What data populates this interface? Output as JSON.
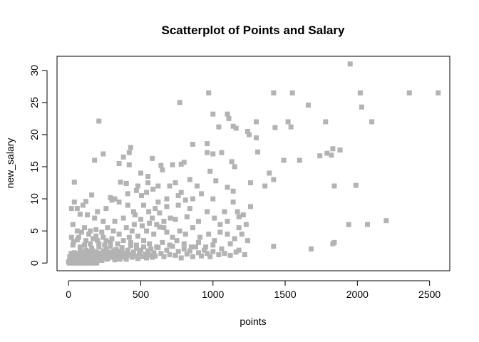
{
  "chart_data": {
    "type": "scatter",
    "title": "Scatterplot of Points and Salary",
    "xlabel": "points",
    "ylabel": "new_salary",
    "xlim": [
      -80,
      2640
    ],
    "ylim": [
      -1.2,
      32.2
    ],
    "x_ticks": [
      0,
      500,
      1000,
      1500,
      2000,
      2500
    ],
    "y_ticks": [
      0,
      5,
      10,
      15,
      20,
      25,
      30
    ],
    "point_color": "#b3b3b3",
    "marker": "square",
    "grid": false,
    "legend": "none",
    "points": [
      [
        1950,
        31.0
      ],
      [
        970,
        26.5
      ],
      [
        1420,
        26.5
      ],
      [
        1550,
        26.5
      ],
      [
        2020,
        26.5
      ],
      [
        2360,
        26.5
      ],
      [
        2560,
        26.5
      ],
      [
        770,
        25.0
      ],
      [
        1660,
        24.6
      ],
      [
        2030,
        24.3
      ],
      [
        1000,
        23.2
      ],
      [
        1100,
        23.2
      ],
      [
        1110,
        22.5
      ],
      [
        1300,
        22.0
      ],
      [
        1520,
        22.0
      ],
      [
        2100,
        22.0
      ],
      [
        210,
        22.1
      ],
      [
        1780,
        22.0
      ],
      [
        1040,
        21.2
      ],
      [
        1140,
        21.3
      ],
      [
        1160,
        21.0
      ],
      [
        1430,
        21.1
      ],
      [
        1540,
        21.2
      ],
      [
        1240,
        20.5
      ],
      [
        1250,
        20.0
      ],
      [
        1300,
        19.5
      ],
      [
        860,
        18.5
      ],
      [
        960,
        18.6
      ],
      [
        1830,
        17.8
      ],
      [
        1880,
        17.6
      ],
      [
        1790,
        17.1
      ],
      [
        1820,
        16.8
      ],
      [
        1740,
        16.7
      ],
      [
        430,
        18.0
      ],
      [
        420,
        17.2
      ],
      [
        380,
        16.5
      ],
      [
        960,
        17.2
      ],
      [
        1000,
        17.0
      ],
      [
        1060,
        17.2
      ],
      [
        1310,
        17.3
      ],
      [
        1490,
        16.0
      ],
      [
        1600,
        16.0
      ],
      [
        240,
        17.0
      ],
      [
        180,
        16.0
      ],
      [
        580,
        16.3
      ],
      [
        800,
        15.7
      ],
      [
        780,
        15.4
      ],
      [
        720,
        15.3
      ],
      [
        640,
        15.2
      ],
      [
        420,
        15.3
      ],
      [
        350,
        15.5
      ],
      [
        1130,
        15.8
      ],
      [
        1150,
        15.0
      ],
      [
        1260,
        12.5
      ],
      [
        650,
        14.5
      ],
      [
        550,
        13.5
      ],
      [
        500,
        14.0
      ],
      [
        980,
        14.3
      ],
      [
        1390,
        14.0
      ],
      [
        1420,
        13.0
      ],
      [
        1360,
        12.0
      ],
      [
        1020,
        12.8
      ],
      [
        890,
        12.0
      ],
      [
        840,
        13.0
      ],
      [
        740,
        12.5
      ],
      [
        1100,
        11.8
      ],
      [
        1140,
        11.2
      ],
      [
        1990,
        12.1
      ],
      [
        1840,
        12.0
      ],
      [
        40,
        12.6
      ],
      [
        360,
        12.6
      ],
      [
        400,
        12.4
      ],
      [
        480,
        12.0
      ],
      [
        550,
        12.5
      ],
      [
        620,
        12.0
      ],
      [
        700,
        12.0
      ],
      [
        780,
        11.0
      ],
      [
        920,
        10.8
      ],
      [
        1000,
        10.0
      ],
      [
        320,
        10.0
      ],
      [
        290,
        10.2
      ],
      [
        160,
        10.6
      ],
      [
        120,
        9.6
      ],
      [
        100,
        9.0
      ],
      [
        40,
        9.5
      ],
      [
        20,
        8.5
      ],
      [
        60,
        8.5
      ],
      [
        200,
        8.0
      ],
      [
        260,
        8.5
      ],
      [
        450,
        8.0
      ],
      [
        520,
        9.0
      ],
      [
        600,
        8.5
      ],
      [
        680,
        8.8
      ],
      [
        760,
        9.0
      ],
      [
        840,
        8.5
      ],
      [
        960,
        8.0
      ],
      [
        1080,
        8.0
      ],
      [
        1260,
        8.8
      ],
      [
        1180,
        7.2
      ],
      [
        1010,
        7.0
      ],
      [
        900,
        6.5
      ],
      [
        820,
        7.2
      ],
      [
        740,
        6.8
      ],
      [
        660,
        6.5
      ],
      [
        580,
        7.0
      ],
      [
        500,
        6.8
      ],
      [
        460,
        7.5
      ],
      [
        380,
        7.0
      ],
      [
        320,
        6.5
      ],
      [
        240,
        6.5
      ],
      [
        180,
        7.0
      ],
      [
        130,
        7.5
      ],
      [
        80,
        7.6
      ],
      [
        30,
        6.0
      ],
      [
        2200,
        6.6
      ],
      [
        2070,
        6.0
      ],
      [
        1940,
        6.0
      ],
      [
        60,
        5.0
      ],
      [
        110,
        5.5
      ],
      [
        150,
        5.0
      ],
      [
        190,
        5.2
      ],
      [
        230,
        4.8
      ],
      [
        270,
        5.5
      ],
      [
        310,
        5.0
      ],
      [
        350,
        4.5
      ],
      [
        400,
        5.5
      ],
      [
        440,
        5.0
      ],
      [
        480,
        4.2
      ],
      [
        540,
        5.0
      ],
      [
        590,
        4.5
      ],
      [
        630,
        5.6
      ],
      [
        680,
        4.8
      ],
      [
        720,
        4.0
      ],
      [
        770,
        5.0
      ],
      [
        810,
        4.5
      ],
      [
        860,
        5.5
      ],
      [
        910,
        4.0
      ],
      [
        970,
        4.5
      ],
      [
        1010,
        3.5
      ],
      [
        1050,
        4.8
      ],
      [
        1100,
        4.5
      ],
      [
        1150,
        3.8
      ],
      [
        1200,
        4.5
      ],
      [
        1240,
        3.5
      ],
      [
        20,
        4.0
      ],
      [
        70,
        4.0
      ],
      [
        120,
        3.5
      ],
      [
        170,
        3.8
      ],
      [
        210,
        3.0
      ],
      [
        260,
        3.5
      ],
      [
        300,
        3.8
      ],
      [
        340,
        3.0
      ],
      [
        380,
        3.5
      ],
      [
        430,
        3.2
      ],
      [
        470,
        2.8
      ],
      [
        520,
        3.5
      ],
      [
        560,
        3.0
      ],
      [
        610,
        2.5
      ],
      [
        650,
        3.2
      ],
      [
        700,
        2.8
      ],
      [
        750,
        3.5
      ],
      [
        800,
        3.0
      ],
      [
        850,
        2.5
      ],
      [
        900,
        3.2
      ],
      [
        950,
        2.5
      ],
      [
        1000,
        2.8
      ],
      [
        1060,
        2.2
      ],
      [
        1120,
        3.0
      ],
      [
        1180,
        2.0
      ],
      [
        1220,
        1.3
      ],
      [
        1420,
        2.6
      ],
      [
        1680,
        2.2
      ],
      [
        1830,
        3.0
      ],
      [
        1840,
        3.2
      ],
      [
        0,
        0.2
      ],
      [
        10,
        0.8
      ],
      [
        20,
        1.2
      ],
      [
        30,
        0.4
      ],
      [
        40,
        1.6
      ],
      [
        50,
        0.6
      ],
      [
        60,
        1.0
      ],
      [
        70,
        0.3
      ],
      [
        80,
        1.8
      ],
      [
        90,
        0.7
      ],
      [
        100,
        1.3
      ],
      [
        110,
        0.4
      ],
      [
        120,
        2.0
      ],
      [
        130,
        0.9
      ],
      [
        140,
        1.5
      ],
      [
        150,
        0.5
      ],
      [
        160,
        2.3
      ],
      [
        170,
        1.1
      ],
      [
        180,
        0.6
      ],
      [
        190,
        1.7
      ],
      [
        200,
        0.8
      ],
      [
        210,
        2.5
      ],
      [
        220,
        1.2
      ],
      [
        230,
        0.4
      ],
      [
        240,
        1.9
      ],
      [
        250,
        1.0
      ],
      [
        260,
        2.2
      ],
      [
        270,
        0.7
      ],
      [
        280,
        1.4
      ],
      [
        290,
        2.6
      ],
      [
        300,
        0.9
      ],
      [
        310,
        1.6
      ],
      [
        320,
        0.5
      ],
      [
        330,
        2.1
      ],
      [
        340,
        1.2
      ],
      [
        350,
        0.8
      ],
      [
        360,
        1.8
      ],
      [
        370,
        2.4
      ],
      [
        380,
        1.0
      ],
      [
        390,
        1.5
      ],
      [
        400,
        0.6
      ],
      [
        410,
        2.0
      ],
      [
        420,
        1.3
      ],
      [
        430,
        2.7
      ],
      [
        440,
        0.9
      ],
      [
        450,
        1.7
      ],
      [
        460,
        1.1
      ],
      [
        470,
        2.3
      ],
      [
        480,
        0.7
      ],
      [
        490,
        1.5
      ],
      [
        500,
        2.0
      ],
      [
        510,
        1.0
      ],
      [
        520,
        2.5
      ],
      [
        530,
        1.4
      ],
      [
        540,
        0.8
      ],
      [
        550,
        1.9
      ],
      [
        560,
        1.2
      ],
      [
        570,
        2.2
      ],
      [
        580,
        0.9
      ],
      [
        590,
        1.6
      ],
      [
        600,
        1.1
      ],
      [
        620,
        2.4
      ],
      [
        640,
        1.5
      ],
      [
        660,
        1.0
      ],
      [
        680,
        2.0
      ],
      [
        700,
        1.3
      ],
      [
        720,
        2.6
      ],
      [
        740,
        1.2
      ],
      [
        760,
        1.8
      ],
      [
        780,
        0.8
      ],
      [
        800,
        2.2
      ],
      [
        820,
        1.4
      ],
      [
        840,
        1.9
      ],
      [
        860,
        1.0
      ],
      [
        880,
        2.5
      ],
      [
        900,
        1.6
      ],
      [
        920,
        1.1
      ],
      [
        940,
        2.0
      ],
      [
        960,
        1.5
      ],
      [
        980,
        1.0
      ],
      [
        1000,
        1.8
      ],
      [
        1040,
        1.3
      ],
      [
        1080,
        1.5
      ],
      [
        1120,
        1.2
      ],
      [
        1160,
        1.7
      ],
      [
        5,
        0.0
      ],
      [
        15,
        0.1
      ],
      [
        25,
        0.0
      ],
      [
        35,
        0.2
      ],
      [
        45,
        0.0
      ],
      [
        55,
        0.1
      ],
      [
        65,
        0.0
      ],
      [
        75,
        0.2
      ],
      [
        85,
        0.0
      ],
      [
        95,
        0.1
      ],
      [
        105,
        0.0
      ],
      [
        115,
        0.2
      ],
      [
        125,
        0.0
      ],
      [
        135,
        0.1
      ],
      [
        145,
        0.0
      ],
      [
        155,
        0.2
      ],
      [
        165,
        0.0
      ],
      [
        175,
        0.1
      ],
      [
        185,
        0.3
      ],
      [
        195,
        0.0
      ],
      [
        12,
        0.5
      ],
      [
        22,
        0.6
      ],
      [
        32,
        0.9
      ],
      [
        42,
        0.3
      ],
      [
        52,
        0.7
      ],
      [
        62,
        1.4
      ],
      [
        72,
        0.5
      ],
      [
        82,
        0.9
      ],
      [
        92,
        1.2
      ],
      [
        102,
        0.6
      ],
      [
        112,
        1.0
      ],
      [
        122,
        0.4
      ],
      [
        132,
        1.3
      ],
      [
        142,
        0.8
      ],
      [
        152,
        1.1
      ],
      [
        162,
        0.5
      ],
      [
        172,
        1.4
      ],
      [
        182,
        0.9
      ],
      [
        192,
        1.2
      ],
      [
        202,
        0.6
      ],
      [
        8,
        1.0
      ],
      [
        18,
        1.5
      ],
      [
        28,
        0.7
      ],
      [
        38,
        1.1
      ],
      [
        48,
        1.4
      ],
      [
        58,
        0.6
      ],
      [
        68,
        1.2
      ],
      [
        78,
        0.8
      ],
      [
        88,
        1.5
      ],
      [
        98,
        1.0
      ],
      [
        108,
        1.7
      ],
      [
        118,
        0.8
      ],
      [
        128,
        1.1
      ],
      [
        138,
        1.8
      ],
      [
        148,
        0.9
      ],
      [
        158,
        1.4
      ],
      [
        168,
        1.9
      ],
      [
        178,
        0.7
      ],
      [
        188,
        1.3
      ],
      [
        198,
        1.6
      ],
      [
        215,
        1.0
      ],
      [
        225,
        1.5
      ],
      [
        235,
        0.9
      ],
      [
        245,
        1.3
      ],
      [
        255,
        1.8
      ],
      [
        265,
        0.6
      ],
      [
        275,
        1.2
      ],
      [
        285,
        1.7
      ],
      [
        295,
        0.9
      ],
      [
        305,
        1.4
      ],
      [
        315,
        1.9
      ],
      [
        325,
        0.8
      ],
      [
        335,
        1.3
      ],
      [
        345,
        1.8
      ],
      [
        355,
        0.6
      ],
      [
        365,
        1.1
      ],
      [
        375,
        1.6
      ],
      [
        385,
        0.9
      ],
      [
        395,
        1.4
      ],
      [
        405,
        1.2
      ],
      [
        150,
        3.0
      ],
      [
        200,
        3.5
      ],
      [
        110,
        2.8
      ],
      [
        60,
        3.6
      ],
      [
        30,
        2.8
      ],
      [
        80,
        2.5
      ],
      [
        250,
        2.8
      ],
      [
        290,
        3.2
      ],
      [
        240,
        4.0
      ],
      [
        190,
        4.2
      ],
      [
        140,
        4.5
      ],
      [
        90,
        4.8
      ],
      [
        35,
        3.3
      ],
      [
        420,
        4.0
      ],
      [
        455,
        6.0
      ],
      [
        510,
        5.8
      ],
      [
        560,
        6.2
      ],
      [
        610,
        6.0
      ],
      [
        660,
        5.5
      ],
      [
        705,
        7.0
      ],
      [
        630,
        7.8
      ],
      [
        555,
        8.0
      ],
      [
        505,
        10.5
      ],
      [
        540,
        11.0
      ],
      [
        585,
        11.5
      ],
      [
        470,
        11.3
      ],
      [
        410,
        10.8
      ],
      [
        350,
        9.5
      ],
      [
        300,
        9.8
      ],
      [
        410,
        9.0
      ],
      [
        860,
        10.0
      ],
      [
        810,
        9.8
      ],
      [
        760,
        10.5
      ],
      [
        680,
        10.0
      ],
      [
        620,
        9.5
      ],
      [
        1140,
        9.5
      ],
      [
        1170,
        8.0
      ],
      [
        1210,
        7.5
      ],
      [
        1100,
        6.5
      ],
      [
        1050,
        6.0
      ],
      [
        1180,
        5.5
      ],
      [
        1230,
        6.0
      ]
    ]
  }
}
